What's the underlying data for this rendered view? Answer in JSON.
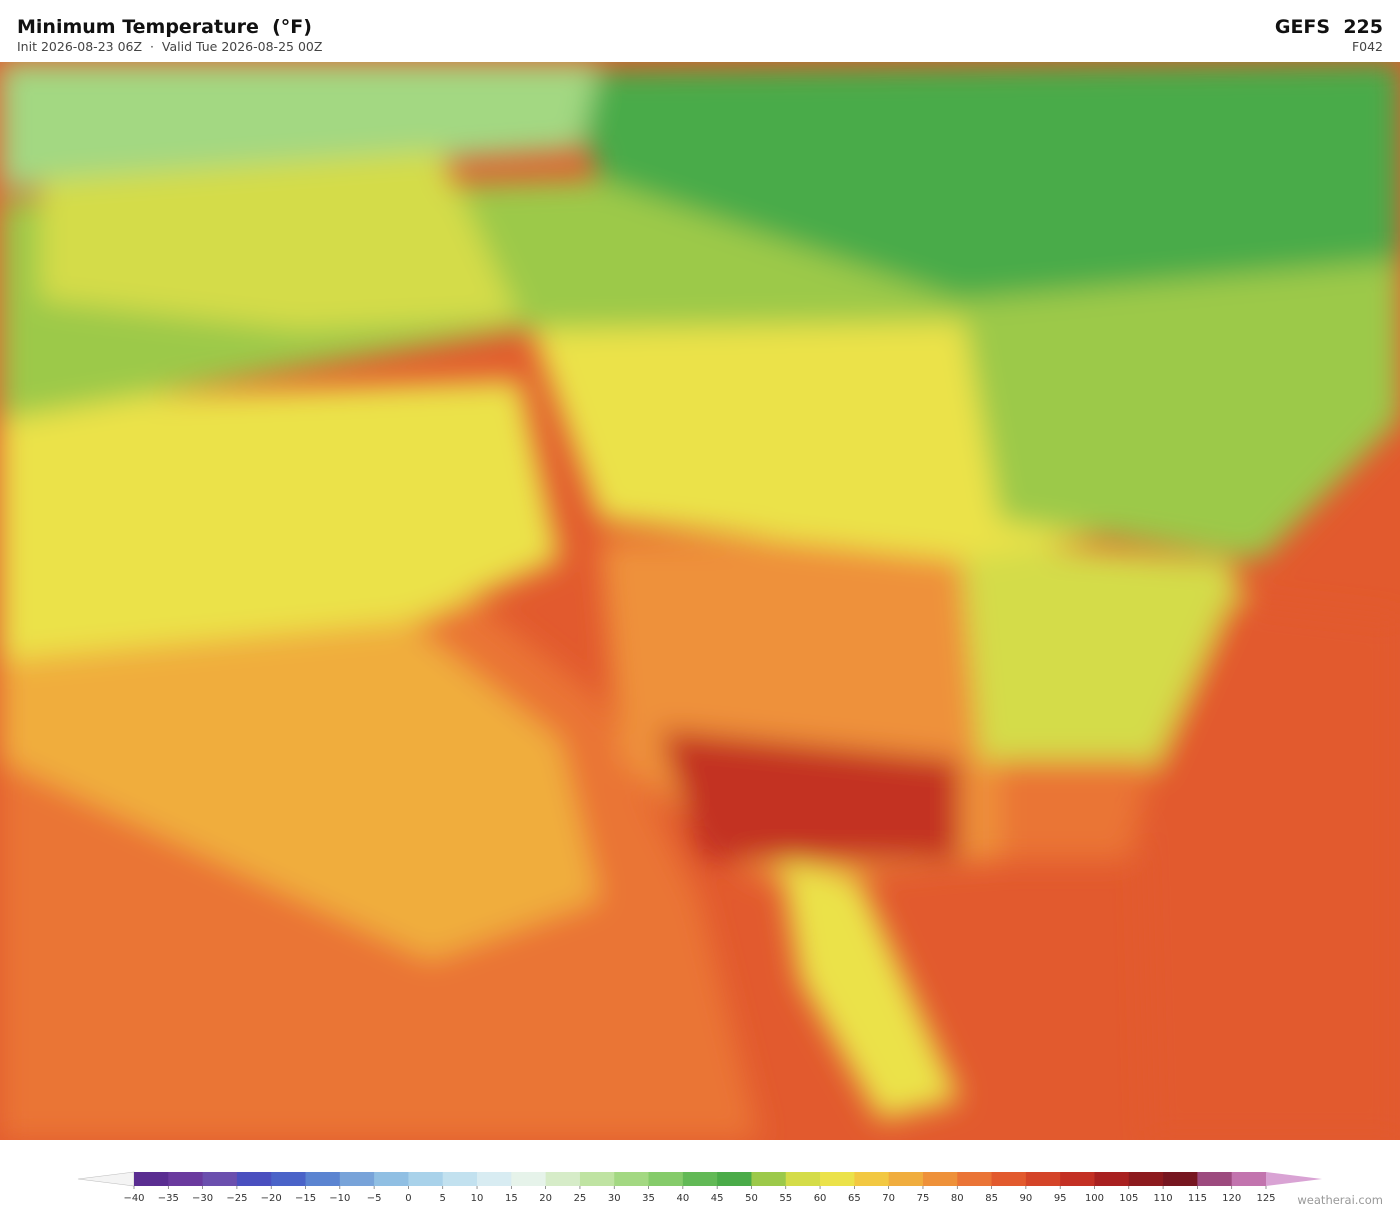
{
  "header": {
    "title": "Minimum Temperature  (°F)",
    "subtitle": "Init 2026-08-23 06Z  ·  Valid Tue 2026-08-25 00Z",
    "model": "GEFS  225",
    "forecast_hour": "F042"
  },
  "colorbar": {
    "ticks": [
      "−40",
      "−35",
      "−30",
      "−25",
      "−20",
      "−15",
      "−10",
      "−5",
      "0",
      "5",
      "10",
      "15",
      "20",
      "25",
      "30",
      "35",
      "40",
      "45",
      "50",
      "55",
      "60",
      "65",
      "70",
      "75",
      "80",
      "85",
      "90",
      "95",
      "100",
      "105",
      "110",
      "115",
      "120",
      "125"
    ],
    "colors": [
      "#5a2d91",
      "#6a3a9e",
      "#6b4fae",
      "#4a4fbf",
      "#4a63c8",
      "#5b84d1",
      "#78a3d9",
      "#90bfe3",
      "#a9d2ea",
      "#c2e1ef",
      "#d8ecf2",
      "#e6f3ea",
      "#d6ecc8",
      "#bfe3a2",
      "#a3d882",
      "#85cb6a",
      "#62b956",
      "#4aab48",
      "#9cc94a",
      "#d4dc48",
      "#ebe24a",
      "#f2c842",
      "#f0ad3e",
      "#ee913a",
      "#ea7436",
      "#e25a2e",
      "#d44428",
      "#c33024",
      "#a82020",
      "#8c1a1e",
      "#761620",
      "#9c4a7e",
      "#c274ae"
    ],
    "under_color": "#f4f4f4",
    "over_color": "#d9a3d4"
  },
  "credit": "weatherai.com"
}
